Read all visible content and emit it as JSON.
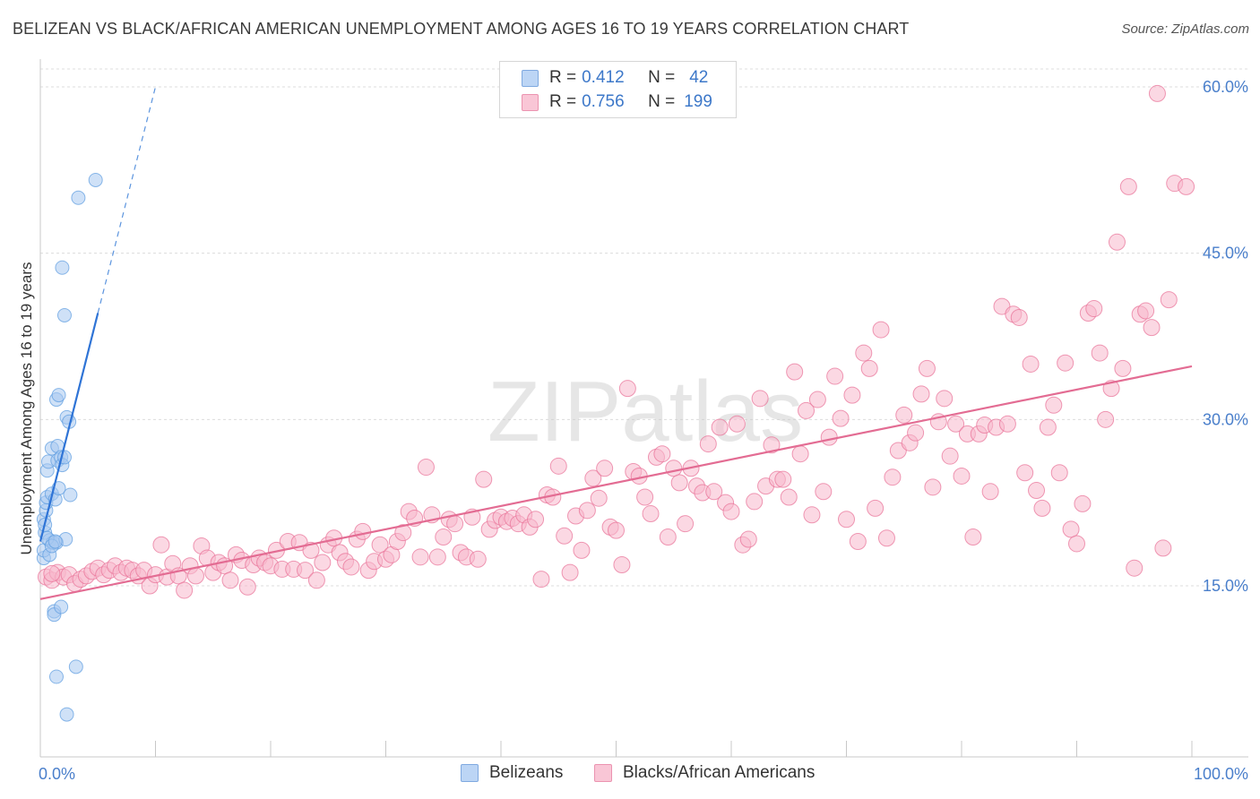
{
  "title": "BELIZEAN VS BLACK/AFRICAN AMERICAN UNEMPLOYMENT AMONG AGES 16 TO 19 YEARS CORRELATION CHART",
  "source": "Source: ZipAtlas.com",
  "watermark": "ZIPatlas",
  "legend": {
    "r_label": "R =",
    "n_label": "N =",
    "series": [
      {
        "r": "0.412",
        "n": "42",
        "color": "#a8c8f0"
      },
      {
        "r": "0.756",
        "n": "199",
        "color": "#f7b8cc"
      }
    ]
  },
  "chart_data": {
    "type": "scatter",
    "title": "BELIZEAN VS BLACK/AFRICAN AMERICAN UNEMPLOYMENT AMONG AGES 16 TO 19 YEARS CORRELATION CHART",
    "xlabel": "",
    "ylabel": "Unemployment Among Ages 16 to 19 years",
    "xlim": [
      0,
      100
    ],
    "ylim": [
      0,
      62
    ],
    "x_tick_labels": [
      "0.0%",
      "100.0%"
    ],
    "y_ticks": [
      15,
      30,
      45,
      60
    ],
    "y_tick_labels": [
      "15.0%",
      "30.0%",
      "45.0%",
      "60.0%"
    ],
    "grid": "horizontal dashed",
    "legend_position": "bottom",
    "series": [
      {
        "name": "Belizeans",
        "color": "#5b9be0",
        "fill": "#a8c8f0",
        "trend": {
          "x0": 0,
          "y0": 19.0,
          "x1": 5,
          "y1": 39.6,
          "dash_to_x": 10,
          "dash_to_y": 60.0
        },
        "points": [
          [
            0.3,
            17.5
          ],
          [
            0.3,
            18.2
          ],
          [
            0.4,
            19.8
          ],
          [
            0.3,
            21.0
          ],
          [
            0.5,
            21.8
          ],
          [
            0.5,
            22.5
          ],
          [
            0.6,
            23.0
          ],
          [
            0.4,
            20.5
          ],
          [
            0.8,
            17.8
          ],
          [
            0.8,
            19.1
          ],
          [
            0.6,
            25.4
          ],
          [
            0.7,
            26.2
          ],
          [
            1.0,
            27.4
          ],
          [
            1.0,
            23.3
          ],
          [
            1.1,
            18.9
          ],
          [
            1.3,
            22.8
          ],
          [
            1.5,
            27.6
          ],
          [
            1.5,
            26.3
          ],
          [
            1.6,
            23.8
          ],
          [
            1.4,
            18.9
          ],
          [
            1.8,
            26.6
          ],
          [
            1.9,
            25.9
          ],
          [
            1.4,
            31.8
          ],
          [
            1.6,
            32.2
          ],
          [
            2.1,
            26.6
          ],
          [
            2.2,
            19.2
          ],
          [
            2.3,
            30.2
          ],
          [
            2.5,
            29.8
          ],
          [
            2.6,
            23.2
          ],
          [
            1.9,
            43.7
          ],
          [
            2.1,
            39.4
          ],
          [
            3.3,
            50.0
          ],
          [
            4.8,
            51.6
          ],
          [
            1.2,
            12.7
          ],
          [
            1.2,
            12.4
          ],
          [
            1.8,
            13.1
          ],
          [
            3.1,
            7.7
          ],
          [
            1.4,
            6.8
          ],
          [
            2.3,
            3.4
          ],
          [
            0.6,
            19.3
          ],
          [
            1.0,
            18.6
          ],
          [
            1.3,
            19.0
          ]
        ]
      },
      {
        "name": "Blacks/African Americans",
        "color": "#e86f96",
        "fill": "#f7b8cc",
        "trend": {
          "x0": 0,
          "y0": 13.8,
          "x1": 100,
          "y1": 34.8
        },
        "points": [
          [
            0.5,
            15.8
          ],
          [
            1.0,
            15.5
          ],
          [
            1.5,
            16.2
          ],
          [
            2.0,
            15.8
          ],
          [
            2.5,
            16.0
          ],
          [
            3.0,
            15.2
          ],
          [
            3.5,
            15.6
          ],
          [
            4.0,
            15.9
          ],
          [
            4.5,
            16.3
          ],
          [
            5.0,
            16.6
          ],
          [
            5.5,
            16.0
          ],
          [
            6.0,
            16.4
          ],
          [
            6.5,
            16.8
          ],
          [
            7.0,
            16.2
          ],
          [
            7.5,
            16.6
          ],
          [
            8.0,
            16.4
          ],
          [
            8.5,
            15.9
          ],
          [
            9.0,
            16.4
          ],
          [
            9.5,
            15.0
          ],
          [
            10.0,
            16.0
          ],
          [
            10.5,
            18.7
          ],
          [
            11.0,
            15.8
          ],
          [
            11.5,
            17.0
          ],
          [
            12.0,
            15.9
          ],
          [
            12.5,
            14.6
          ],
          [
            13.0,
            16.8
          ],
          [
            13.5,
            15.9
          ],
          [
            14.0,
            18.6
          ],
          [
            14.5,
            17.5
          ],
          [
            15.0,
            16.2
          ],
          [
            15.5,
            17.1
          ],
          [
            16.0,
            16.8
          ],
          [
            16.5,
            15.5
          ],
          [
            17.0,
            17.8
          ],
          [
            17.5,
            17.3
          ],
          [
            18.0,
            14.9
          ],
          [
            18.5,
            16.9
          ],
          [
            19.0,
            17.5
          ],
          [
            19.5,
            17.1
          ],
          [
            20.0,
            16.8
          ],
          [
            20.5,
            18.2
          ],
          [
            21.0,
            16.5
          ],
          [
            21.5,
            19.0
          ],
          [
            22.0,
            16.5
          ],
          [
            22.5,
            18.9
          ],
          [
            23.0,
            16.4
          ],
          [
            23.5,
            18.2
          ],
          [
            24.0,
            15.5
          ],
          [
            24.5,
            17.1
          ],
          [
            25.0,
            18.7
          ],
          [
            25.5,
            19.3
          ],
          [
            26.0,
            18.0
          ],
          [
            26.5,
            17.2
          ],
          [
            27.0,
            16.7
          ],
          [
            27.5,
            19.2
          ],
          [
            28.0,
            19.9
          ],
          [
            28.5,
            16.4
          ],
          [
            29.0,
            17.2
          ],
          [
            29.5,
            18.7
          ],
          [
            30.0,
            17.4
          ],
          [
            30.5,
            17.8
          ],
          [
            31.0,
            19.0
          ],
          [
            31.5,
            19.8
          ],
          [
            32.0,
            21.7
          ],
          [
            32.5,
            21.1
          ],
          [
            33.0,
            17.6
          ],
          [
            33.5,
            25.7
          ],
          [
            34.0,
            21.4
          ],
          [
            34.5,
            17.6
          ],
          [
            35.0,
            19.4
          ],
          [
            35.5,
            21.0
          ],
          [
            36.0,
            20.6
          ],
          [
            36.5,
            18.0
          ],
          [
            37.0,
            17.6
          ],
          [
            37.5,
            21.2
          ],
          [
            38.0,
            17.4
          ],
          [
            38.5,
            24.6
          ],
          [
            39.0,
            20.1
          ],
          [
            39.5,
            20.9
          ],
          [
            40.0,
            21.2
          ],
          [
            40.5,
            20.8
          ],
          [
            41.0,
            21.1
          ],
          [
            41.5,
            20.6
          ],
          [
            42.0,
            21.4
          ],
          [
            42.5,
            20.3
          ],
          [
            43.0,
            21.0
          ],
          [
            43.5,
            15.6
          ],
          [
            44.0,
            23.2
          ],
          [
            44.5,
            23.0
          ],
          [
            45.0,
            25.8
          ],
          [
            45.5,
            19.5
          ],
          [
            46.0,
            16.2
          ],
          [
            46.5,
            21.3
          ],
          [
            47.0,
            18.2
          ],
          [
            47.5,
            21.8
          ],
          [
            48.0,
            24.7
          ],
          [
            48.5,
            22.9
          ],
          [
            49.0,
            25.6
          ],
          [
            49.5,
            20.3
          ],
          [
            50.0,
            20.0
          ],
          [
            50.5,
            16.9
          ],
          [
            51.0,
            32.8
          ],
          [
            51.5,
            25.3
          ],
          [
            52.0,
            24.9
          ],
          [
            52.5,
            23.0
          ],
          [
            53.0,
            21.5
          ],
          [
            53.5,
            26.6
          ],
          [
            54.0,
            26.9
          ],
          [
            54.5,
            19.4
          ],
          [
            55.0,
            25.6
          ],
          [
            55.5,
            24.3
          ],
          [
            56.0,
            20.6
          ],
          [
            56.5,
            25.6
          ],
          [
            57.0,
            24.0
          ],
          [
            57.5,
            23.4
          ],
          [
            58.0,
            27.8
          ],
          [
            58.5,
            23.5
          ],
          [
            59.0,
            29.3
          ],
          [
            59.5,
            22.5
          ],
          [
            60.0,
            21.7
          ],
          [
            60.5,
            29.6
          ],
          [
            61.0,
            18.7
          ],
          [
            61.5,
            19.2
          ],
          [
            62.0,
            22.6
          ],
          [
            62.5,
            31.9
          ],
          [
            63.0,
            24.0
          ],
          [
            63.5,
            27.7
          ],
          [
            64.0,
            24.6
          ],
          [
            64.5,
            24.6
          ],
          [
            65.0,
            23.0
          ],
          [
            65.5,
            34.3
          ],
          [
            66.0,
            26.9
          ],
          [
            66.5,
            30.8
          ],
          [
            67.0,
            21.4
          ],
          [
            67.5,
            31.8
          ],
          [
            68.0,
            23.5
          ],
          [
            68.5,
            28.4
          ],
          [
            69.0,
            33.9
          ],
          [
            69.5,
            30.1
          ],
          [
            70.0,
            21.0
          ],
          [
            70.5,
            32.2
          ],
          [
            71.0,
            19.0
          ],
          [
            71.5,
            36.0
          ],
          [
            72.0,
            34.6
          ],
          [
            72.5,
            22.0
          ],
          [
            73.0,
            38.1
          ],
          [
            73.5,
            19.3
          ],
          [
            74.0,
            24.8
          ],
          [
            74.5,
            27.2
          ],
          [
            75.0,
            30.4
          ],
          [
            75.5,
            27.9
          ],
          [
            76.0,
            28.8
          ],
          [
            76.5,
            32.3
          ],
          [
            77.0,
            34.6
          ],
          [
            77.5,
            23.9
          ],
          [
            78.0,
            29.8
          ],
          [
            78.5,
            31.9
          ],
          [
            79.0,
            26.7
          ],
          [
            79.5,
            29.6
          ],
          [
            80.0,
            24.9
          ],
          [
            80.5,
            28.7
          ],
          [
            81.0,
            19.4
          ],
          [
            81.5,
            28.7
          ],
          [
            82.0,
            29.5
          ],
          [
            82.5,
            23.5
          ],
          [
            83.0,
            29.3
          ],
          [
            83.5,
            40.2
          ],
          [
            84.0,
            29.6
          ],
          [
            84.5,
            39.5
          ],
          [
            85.0,
            39.2
          ],
          [
            85.5,
            25.2
          ],
          [
            86.0,
            35.0
          ],
          [
            86.5,
            23.6
          ],
          [
            87.0,
            22.0
          ],
          [
            87.5,
            29.3
          ],
          [
            88.0,
            31.3
          ],
          [
            88.5,
            25.2
          ],
          [
            89.0,
            35.1
          ],
          [
            89.5,
            20.1
          ],
          [
            90.0,
            18.8
          ],
          [
            90.5,
            22.4
          ],
          [
            91.0,
            39.6
          ],
          [
            91.5,
            40.0
          ],
          [
            92.0,
            36.0
          ],
          [
            92.5,
            30.0
          ],
          [
            93.0,
            32.8
          ],
          [
            93.5,
            46.0
          ],
          [
            94.0,
            34.6
          ],
          [
            94.5,
            51.0
          ],
          [
            95.0,
            16.6
          ],
          [
            95.5,
            39.5
          ],
          [
            96.0,
            39.8
          ],
          [
            96.5,
            38.3
          ],
          [
            97.0,
            59.4
          ],
          [
            97.5,
            18.4
          ],
          [
            98.0,
            40.8
          ],
          [
            98.5,
            51.3
          ],
          [
            99.5,
            51.0
          ],
          [
            1.0,
            16.1
          ]
        ]
      }
    ]
  }
}
